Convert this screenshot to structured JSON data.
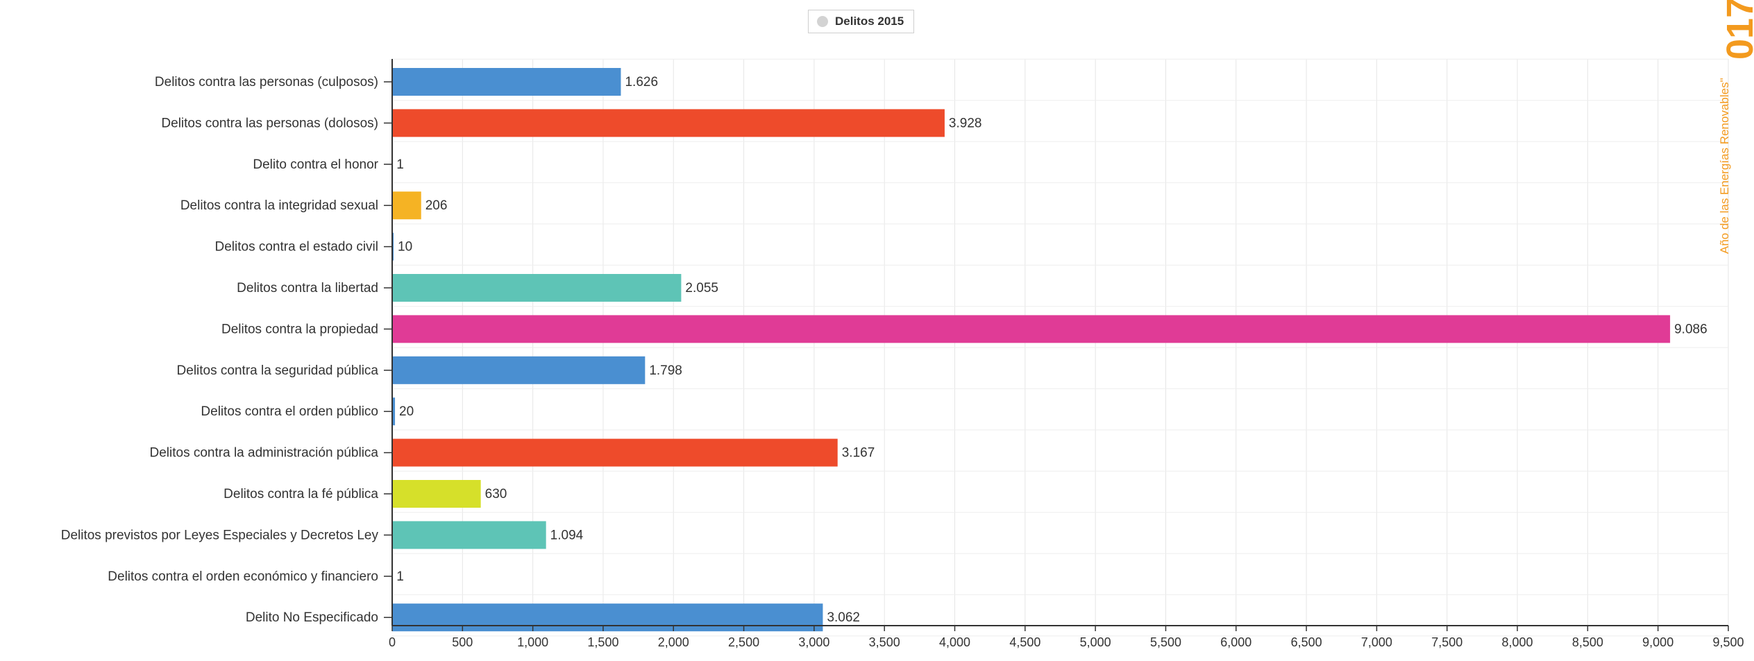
{
  "legend": {
    "label": "Delitos 2015",
    "swatch_color": "#d3d3d3"
  },
  "watermark": {
    "year_fragment": "017",
    "text": "Año de las Energías Renovables\"",
    "color": "#f39a1e"
  },
  "chart_data": {
    "type": "bar",
    "orientation": "horizontal",
    "title": "",
    "xlabel": "",
    "ylabel": "",
    "xlim": [
      0,
      9500
    ],
    "x_ticks": [
      0,
      500,
      1000,
      1500,
      2000,
      2500,
      3000,
      3500,
      4000,
      4500,
      5000,
      5500,
      6000,
      6500,
      7000,
      7500,
      8000,
      8500,
      9000,
      9500
    ],
    "x_tick_labels": [
      "0",
      "500",
      "1,000",
      "1,500",
      "2,000",
      "2,500",
      "3,000",
      "3,500",
      "4,000",
      "4,500",
      "5,000",
      "5,500",
      "6,000",
      "6,500",
      "7,000",
      "7,500",
      "8,000",
      "8,500",
      "9,000",
      "9,500"
    ],
    "grid": true,
    "legend_position": "top-center",
    "categories": [
      "Delitos contra las personas (culposos)",
      "Delitos contra las personas (dolosos)",
      "Delito contra el honor",
      "Delitos contra la integridad sexual",
      "Delitos contra el estado civil",
      "Delitos contra la libertad",
      "Delitos contra la propiedad",
      "Delitos contra la seguridad pública",
      "Delitos contra el orden público",
      "Delitos contra la administración pública",
      "Delitos contra la fé pública",
      "Delitos previstos por Leyes Especiales y Decretos Ley",
      "Delitos contra el orden económico y financiero",
      "Delito No Especificado"
    ],
    "series": [
      {
        "name": "Delitos 2015",
        "values": [
          1626,
          3928,
          1,
          206,
          10,
          2055,
          9086,
          1798,
          20,
          3167,
          630,
          1094,
          1,
          3062
        ],
        "value_labels": [
          "1.626",
          "3.928",
          "1",
          "206",
          "10",
          "2.055",
          "9.086",
          "1.798",
          "20",
          "3.167",
          "630",
          "1.094",
          "1",
          "3.062"
        ],
        "colors": [
          "#4a8fd1",
          "#ee4b2b",
          "#4a8fd1",
          "#f5b324",
          "#4a8fd1",
          "#5ec4b6",
          "#e03b96",
          "#4a8fd1",
          "#4a8fd1",
          "#ee4b2b",
          "#d6e02a",
          "#5ec4b6",
          "#4a8fd1",
          "#4a8fd1"
        ]
      }
    ]
  }
}
